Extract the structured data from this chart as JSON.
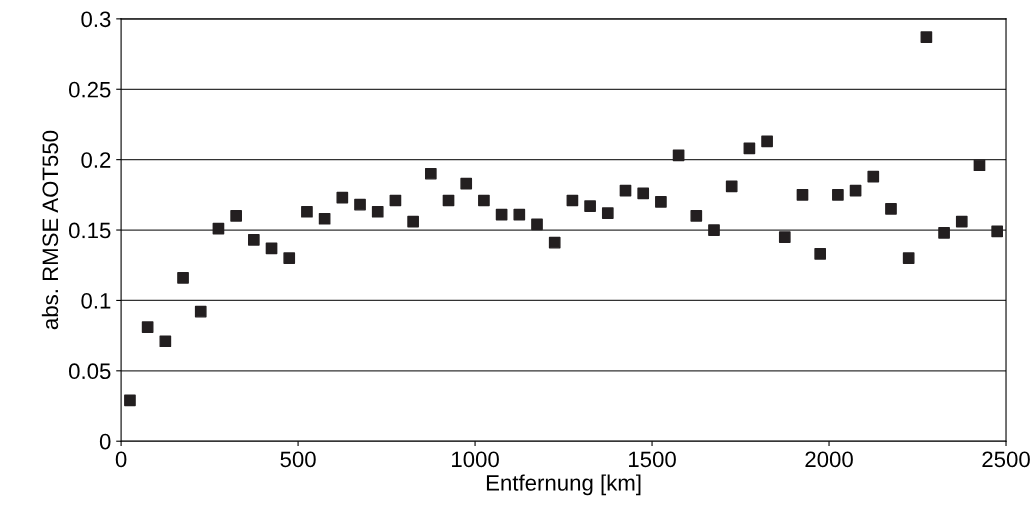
{
  "chart_data": {
    "type": "scatter",
    "xlabel": "Entfernung [km]",
    "ylabel": "abs. RMSE AOT550",
    "x": [
      25,
      75,
      125,
      175,
      225,
      275,
      325,
      375,
      425,
      475,
      525,
      575,
      625,
      675,
      725,
      775,
      825,
      875,
      925,
      975,
      1025,
      1075,
      1125,
      1175,
      1225,
      1275,
      1325,
      1375,
      1425,
      1475,
      1525,
      1575,
      1625,
      1675,
      1725,
      1775,
      1825,
      1875,
      1925,
      1975,
      2025,
      2075,
      2125,
      2175,
      2225,
      2275,
      2325,
      2375,
      2425,
      2475
    ],
    "series": [
      {
        "color": "#231f20",
        "values": [
          0.029,
          0.081,
          0.071,
          0.116,
          0.092,
          0.151,
          0.16,
          0.143,
          0.137,
          0.13,
          0.163,
          0.158,
          0.173,
          0.168,
          0.163,
          0.171,
          0.156,
          0.19,
          0.171,
          0.183,
          0.171,
          0.161,
          0.161,
          0.154,
          0.141,
          0.171,
          0.167,
          0.162,
          0.178,
          0.176,
          0.17,
          0.203,
          0.16,
          0.15,
          0.181,
          0.208,
          0.213,
          0.145,
          0.175,
          0.133,
          0.175,
          0.178,
          0.188,
          0.165,
          0.13,
          0.287,
          0.148,
          0.156,
          0.196,
          0.149
        ]
      }
    ],
    "xlim": [
      0,
      2500
    ],
    "xticks": [
      0,
      500,
      1000,
      1500,
      2000,
      2500
    ],
    "ylim": [
      0,
      0.3
    ],
    "yticks": [
      0,
      0.05,
      0.1,
      0.15,
      0.2,
      0.25,
      0.3
    ],
    "grid": "y",
    "marker": "square",
    "legend": false
  }
}
